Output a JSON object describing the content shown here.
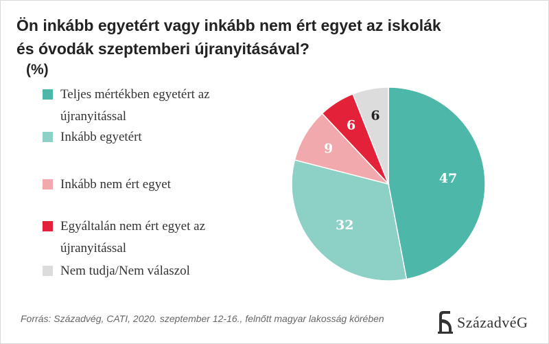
{
  "chart_data": {
    "type": "pie",
    "title": "Ön inkább egyetért vagy inkább nem ért egyet az iskolák és óvodák szeptemberi újranyitásával?",
    "unit": "(%)",
    "categories": [
      "Teljes mértékben egyetért az újranyitással",
      "Inkább egyetért",
      "Inkább nem ért egyet",
      "Egyáltalán nem ért egyet az újranyitással",
      "Nem tudja/Nem válaszol"
    ],
    "values": [
      47,
      32,
      9,
      6,
      6
    ],
    "colors": [
      "#4db8a9",
      "#8dd1c6",
      "#f2a9ad",
      "#e3223a",
      "#dcdcdc"
    ],
    "label_colors": [
      "#ffffff",
      "#ffffff",
      "#ffffff",
      "#ffffff",
      "#222222"
    ],
    "legend_position": "left"
  },
  "source": "Forrás: Századvég, CATI, 2020. szeptember 12-16., felnőtt magyar lakosság körében",
  "logo": {
    "text": "SzázadvéG",
    "icon": "szazadveg-logo-icon"
  }
}
